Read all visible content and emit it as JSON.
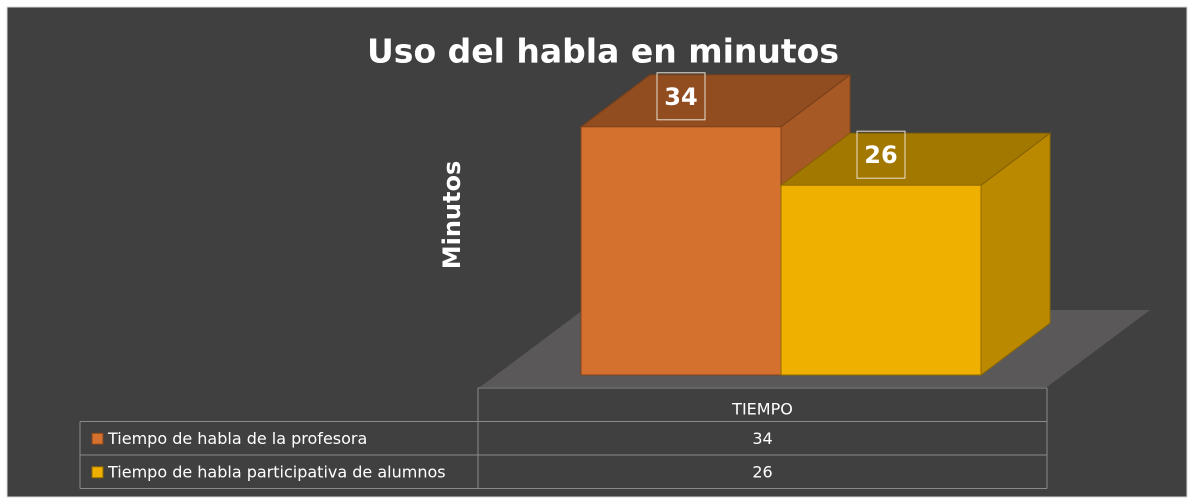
{
  "chart_data": {
    "type": "bar3d",
    "title": "Uso del habla en minutos",
    "y_label": "Minutos",
    "categories": [
      "TIEMPO"
    ],
    "series": [
      {
        "name": "Tiempo de habla de la profesora",
        "color": "#d5712f",
        "values": [
          34
        ]
      },
      {
        "name": "Tiempo de habla participativa de alumnos",
        "color": "#f0b000",
        "values": [
          26
        ]
      }
    ]
  }
}
